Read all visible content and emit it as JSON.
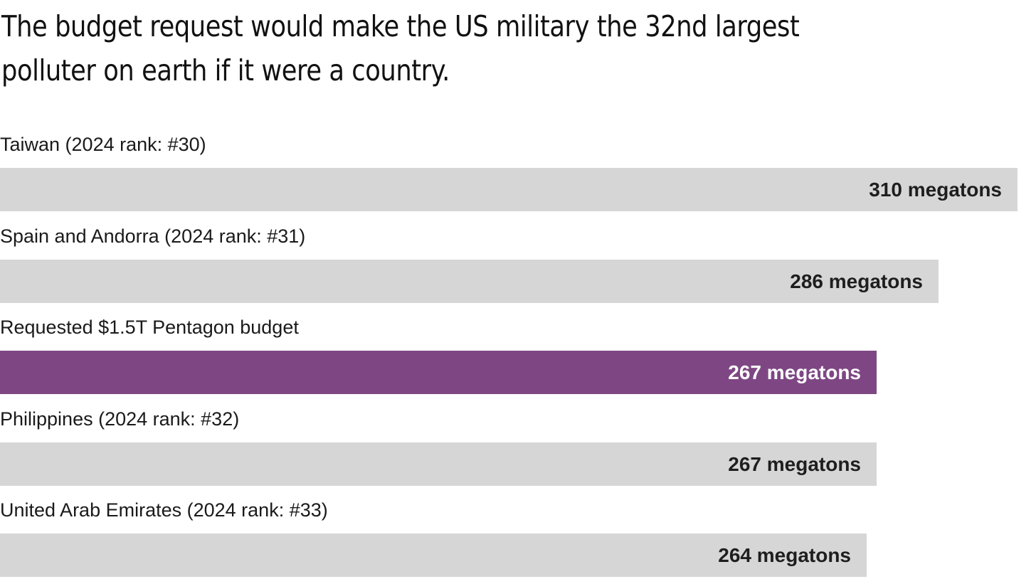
{
  "title": "The budget request would make the US military the 32nd largest polluter on earth if it were a country.",
  "colors": {
    "default_bar": "#d6d6d6",
    "highlight_bar": "#7e4784",
    "default_value_text": "#1e1e1e",
    "highlight_value_text": "#ffffff"
  },
  "chart_data": {
    "type": "bar",
    "orientation": "horizontal",
    "title": "The budget request would make the US military the 32nd largest polluter on earth if it were a country.",
    "xlabel": "",
    "ylabel": "",
    "grid": false,
    "legend": "none",
    "xlim": [
      0,
      310
    ],
    "unit": "megatons",
    "categories": [
      "Taiwan (2024 rank: #30)",
      "Spain and Andorra (2024 rank: #31)",
      "Requested $1.5T Pentagon budget",
      "Philippines (2024 rank: #32)",
      "United Arab Emirates (2024 rank: #33)"
    ],
    "values": [
      310,
      286,
      267,
      267,
      264
    ],
    "value_labels": [
      "310 megatons",
      "286 megatons",
      "267 megatons",
      "267 megatons",
      "264 megatons"
    ],
    "highlighted": [
      false,
      false,
      true,
      false,
      false
    ]
  }
}
